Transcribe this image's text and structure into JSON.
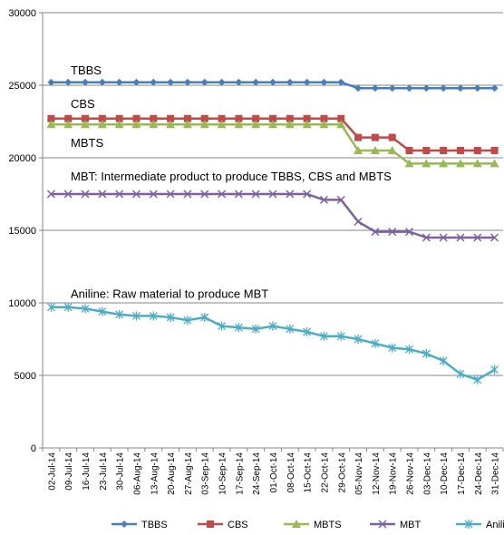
{
  "chart_data": {
    "type": "line",
    "ylim": [
      0,
      30000
    ],
    "yticks": [
      0,
      5000,
      10000,
      15000,
      20000,
      25000,
      30000
    ],
    "grid": "horizontal",
    "legend_position": "bottom",
    "x": [
      "02-Jul-14",
      "09-Jul-14",
      "16-Jul-14",
      "23-Jul-14",
      "30-Jul-14",
      "06-Aug-14",
      "13-Aug-14",
      "20-Aug-14",
      "27-Aug-14",
      "03-Sep-14",
      "10-Sep-14",
      "17-Sep-14",
      "24-Sep-14",
      "01-Oct-14",
      "08-Oct-14",
      "15-Oct-14",
      "22-Oct-14",
      "29-Oct-14",
      "05-Nov-14",
      "12-Nov-14",
      "19-Nov-14",
      "26-Nov-14",
      "03-Dec-14",
      "10-Dec-14",
      "17-Dec-14",
      "24-Dec-14",
      "31-Dec-14"
    ],
    "series": [
      {
        "name": "TBBS",
        "color": "#4a7ebb",
        "marker": "diamond",
        "values": [
          25200,
          25200,
          25200,
          25200,
          25200,
          25200,
          25200,
          25200,
          25200,
          25200,
          25200,
          25200,
          25200,
          25200,
          25200,
          25200,
          25200,
          25200,
          24800,
          24800,
          24800,
          24800,
          24800,
          24800,
          24800,
          24800,
          24800
        ]
      },
      {
        "name": "CBS",
        "color": "#be4b48",
        "marker": "square",
        "values": [
          22700,
          22700,
          22700,
          22700,
          22700,
          22700,
          22700,
          22700,
          22700,
          22700,
          22700,
          22700,
          22700,
          22700,
          22700,
          22700,
          22700,
          22700,
          21400,
          21400,
          21400,
          20500,
          20500,
          20500,
          20500,
          20500,
          20500
        ]
      },
      {
        "name": "MBTS",
        "color": "#98b954",
        "marker": "triangle",
        "values": [
          22300,
          22300,
          22300,
          22300,
          22300,
          22300,
          22300,
          22300,
          22300,
          22300,
          22300,
          22300,
          22300,
          22300,
          22300,
          22300,
          22300,
          22300,
          20500,
          20500,
          20500,
          19600,
          19600,
          19600,
          19600,
          19600,
          19600
        ]
      },
      {
        "name": "MBT",
        "color": "#7d60a0",
        "marker": "x",
        "values": [
          17500,
          17500,
          17500,
          17500,
          17500,
          17500,
          17500,
          17500,
          17500,
          17500,
          17500,
          17500,
          17500,
          17500,
          17500,
          17500,
          17100,
          17100,
          15600,
          14900,
          14900,
          14900,
          14500,
          14500,
          14500,
          14500,
          14500
        ]
      },
      {
        "name": "Aniline",
        "color": "#4bacc6",
        "marker": "star",
        "values": [
          9700,
          9700,
          9600,
          9400,
          9200,
          9100,
          9100,
          9000,
          8800,
          9000,
          8400,
          8300,
          8200,
          8400,
          8200,
          8000,
          7700,
          7700,
          7500,
          7200,
          6900,
          6800,
          6500,
          6000,
          5100,
          4700,
          5400
        ]
      }
    ],
    "annotations": [
      {
        "text": "TBBS",
        "value": 26000
      },
      {
        "text": "CBS",
        "value": 23700
      },
      {
        "text": "MBTS",
        "value": 21000
      },
      {
        "text": "MBT: Intermediate product to produce TBBS, CBS and MBTS",
        "value": 18700
      },
      {
        "text": "Aniline: Raw material to produce MBT",
        "value": 10600
      }
    ]
  }
}
